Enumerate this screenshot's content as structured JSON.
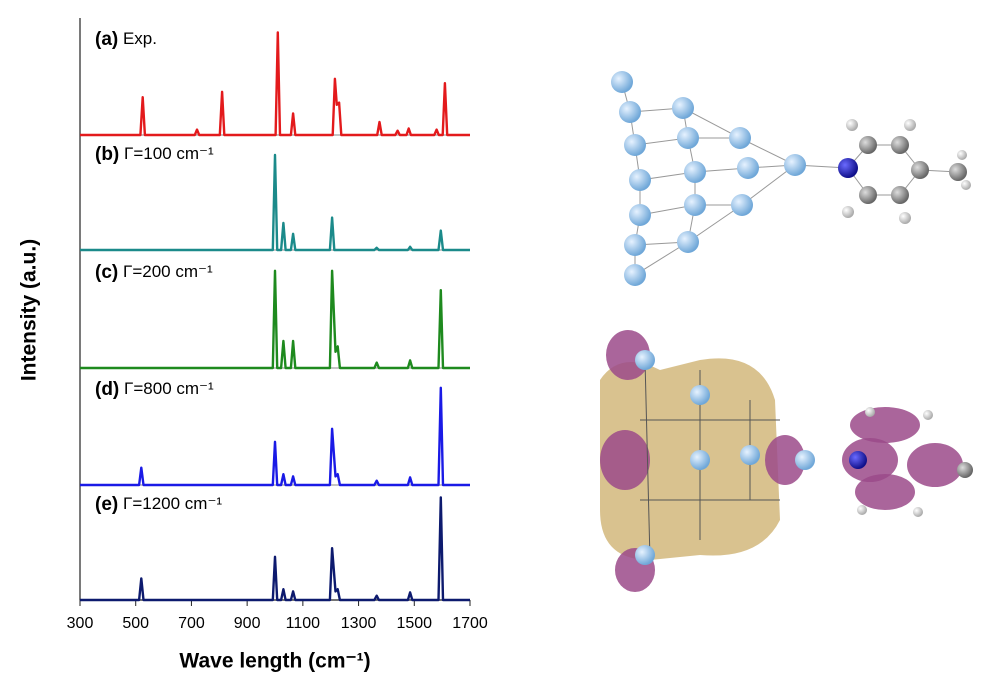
{
  "chart_data": {
    "type": "line",
    "x_label": "Wave length (cm⁻¹)",
    "y_label": "Intensity (a.u.)",
    "xlim": [
      300,
      1700
    ],
    "xticks": [
      300,
      500,
      700,
      900,
      1100,
      1300,
      1500,
      1700
    ],
    "ylim": [
      0,
      1
    ],
    "series": [
      {
        "label": "(a)",
        "name": "Exp.",
        "color": "#e31a1c",
        "x": [
          300,
          517,
          525,
          533,
          712,
          720,
          728,
          802,
          810,
          818,
          1002,
          1010,
          1018,
          1057,
          1065,
          1073,
          1207,
          1215,
          1222,
          1230,
          1238,
          1367,
          1375,
          1383,
          1432,
          1440,
          1448,
          1472,
          1480,
          1488,
          1572,
          1580,
          1588,
          1602,
          1610,
          1618,
          1700
        ],
        "values": [
          0,
          0,
          0.35,
          0,
          0,
          0.05,
          0,
          0,
          0.4,
          0,
          0,
          0.95,
          0,
          0,
          0.2,
          0,
          0,
          0.52,
          0.28,
          0.3,
          0,
          0,
          0.12,
          0,
          0,
          0.04,
          0,
          0,
          0.06,
          0,
          0,
          0.05,
          0,
          0,
          0.48,
          0,
          0
        ]
      },
      {
        "label": "(b)",
        "name": "Γ=100 cm⁻¹",
        "color": "#1b8a8a",
        "x": [
          300,
          992,
          1000,
          1008,
          1022,
          1030,
          1038,
          1057,
          1065,
          1073,
          1197,
          1205,
          1213,
          1357,
          1365,
          1373,
          1477,
          1485,
          1493,
          1587,
          1595,
          1603,
          1700
        ],
        "values": [
          0,
          0,
          0.88,
          0,
          0,
          0.25,
          0,
          0,
          0.15,
          0,
          0,
          0.3,
          0,
          0,
          0.02,
          0,
          0,
          0.03,
          0,
          0,
          0.18,
          0,
          0
        ]
      },
      {
        "label": "(c)",
        "name": "Γ=200 cm⁻¹",
        "color": "#1e8a1e",
        "x": [
          300,
          992,
          1000,
          1008,
          1022,
          1030,
          1038,
          1057,
          1065,
          1073,
          1197,
          1205,
          1217,
          1225,
          1233,
          1357,
          1365,
          1373,
          1477,
          1485,
          1493,
          1587,
          1595,
          1603,
          1700
        ],
        "values": [
          0,
          0,
          0.9,
          0,
          0,
          0.25,
          0,
          0,
          0.25,
          0,
          0,
          0.9,
          0.15,
          0.2,
          0,
          0,
          0.05,
          0,
          0,
          0.07,
          0,
          0,
          0.72,
          0,
          0
        ]
      },
      {
        "label": "(d)",
        "name": "Γ=800 cm⁻¹",
        "color": "#1a1ae6",
        "x": [
          300,
          512,
          520,
          528,
          992,
          1000,
          1008,
          1022,
          1030,
          1038,
          1057,
          1065,
          1073,
          1197,
          1205,
          1217,
          1225,
          1233,
          1357,
          1365,
          1373,
          1477,
          1485,
          1493,
          1587,
          1595,
          1603,
          1700
        ],
        "values": [
          0,
          0,
          0.16,
          0,
          0,
          0.4,
          0,
          0,
          0.1,
          0,
          0,
          0.08,
          0,
          0,
          0.52,
          0.08,
          0.1,
          0,
          0,
          0.04,
          0,
          0,
          0.07,
          0,
          0,
          0.9,
          0,
          0
        ]
      },
      {
        "label": "(e)",
        "name": "Γ=1200 cm⁻¹",
        "color": "#0d1a6e",
        "x": [
          300,
          512,
          520,
          528,
          992,
          1000,
          1008,
          1022,
          1030,
          1038,
          1057,
          1065,
          1073,
          1197,
          1205,
          1217,
          1225,
          1233,
          1357,
          1365,
          1373,
          1477,
          1485,
          1493,
          1587,
          1595,
          1603,
          1700
        ],
        "values": [
          0,
          0,
          0.2,
          0,
          0,
          0.4,
          0,
          0,
          0.1,
          0,
          0,
          0.08,
          0,
          0,
          0.48,
          0.08,
          0.1,
          0,
          0,
          0.04,
          0,
          0,
          0.07,
          0,
          0,
          0.95,
          0,
          0
        ]
      }
    ]
  }
}
